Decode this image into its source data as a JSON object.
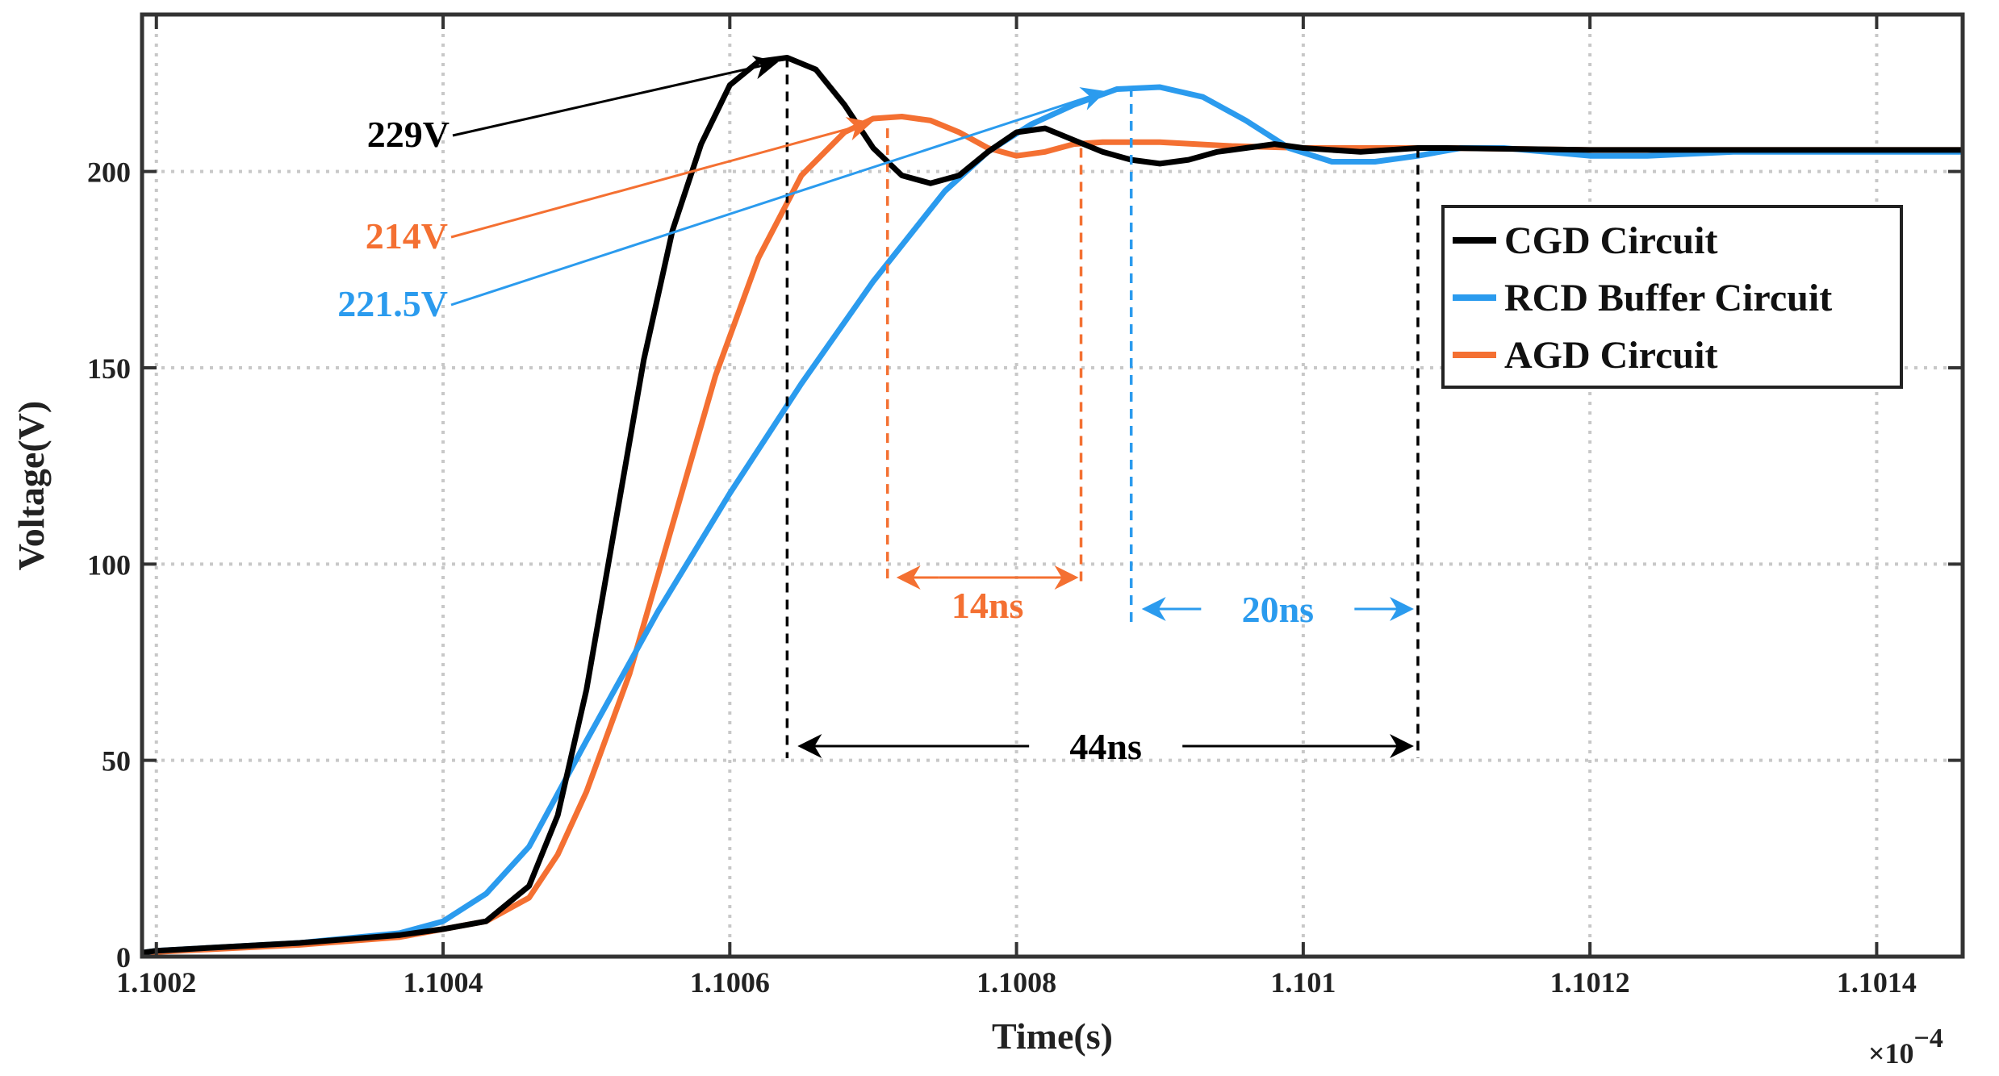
{
  "chart_data": {
    "type": "line",
    "xlabel": "Time(s)",
    "ylabel": "Voltage(V)",
    "x_multiplier": "×10",
    "x_multiplier_exp": "−4",
    "xlim": [
      1.10019,
      1.10146
    ],
    "ylim": [
      0,
      240
    ],
    "x_ticks": [
      1.1002,
      1.1004,
      1.1006,
      1.1008,
      1.101,
      1.1012,
      1.1014
    ],
    "x_tick_labels": [
      "1.1002",
      "1.1004",
      "1.1006",
      "1.1008",
      "1.101",
      "1.1012",
      "1.1014"
    ],
    "y_ticks": [
      0,
      50,
      100,
      150,
      200
    ],
    "y_tick_labels": [
      "0",
      "50",
      "100",
      "150",
      "200"
    ],
    "grid": true,
    "legend_position": "top-right",
    "series": [
      {
        "name": "CGD Circuit",
        "color": "#000000",
        "points": [
          [
            1.10019,
            1
          ],
          [
            1.1002,
            1.5
          ],
          [
            1.1003,
            3.5
          ],
          [
            1.10037,
            5.5
          ],
          [
            1.1004,
            7
          ],
          [
            1.10043,
            9
          ],
          [
            1.10046,
            18
          ],
          [
            1.10048,
            36
          ],
          [
            1.1005,
            68
          ],
          [
            1.10052,
            110
          ],
          [
            1.10054,
            152
          ],
          [
            1.10056,
            185
          ],
          [
            1.10058,
            207
          ],
          [
            1.1006,
            222
          ],
          [
            1.10062,
            228
          ],
          [
            1.10064,
            229
          ],
          [
            1.10066,
            226
          ],
          [
            1.10068,
            217
          ],
          [
            1.1007,
            206
          ],
          [
            1.10072,
            199
          ],
          [
            1.10074,
            197
          ],
          [
            1.10076,
            199
          ],
          [
            1.10078,
            205
          ],
          [
            1.1008,
            210
          ],
          [
            1.10082,
            211
          ],
          [
            1.10084,
            208
          ],
          [
            1.10086,
            205
          ],
          [
            1.10088,
            203
          ],
          [
            1.1009,
            202
          ],
          [
            1.10092,
            203
          ],
          [
            1.10094,
            205
          ],
          [
            1.10096,
            206
          ],
          [
            1.10098,
            207
          ],
          [
            1.101,
            206
          ],
          [
            1.10104,
            205
          ],
          [
            1.10108,
            206
          ],
          [
            1.1011,
            206
          ],
          [
            1.1012,
            205.5
          ],
          [
            1.1013,
            205.5
          ],
          [
            1.10146,
            205.5
          ]
        ]
      },
      {
        "name": "RCD Buffer Circuit",
        "color": "#2b9bee",
        "points": [
          [
            1.10019,
            1
          ],
          [
            1.1002,
            1.5
          ],
          [
            1.1003,
            3.5
          ],
          [
            1.10037,
            6
          ],
          [
            1.1004,
            9
          ],
          [
            1.10043,
            16
          ],
          [
            1.10046,
            28
          ],
          [
            1.1005,
            55
          ],
          [
            1.10055,
            88
          ],
          [
            1.1006,
            118
          ],
          [
            1.10065,
            146
          ],
          [
            1.1007,
            172
          ],
          [
            1.10075,
            195
          ],
          [
            1.10078,
            205
          ],
          [
            1.10081,
            212
          ],
          [
            1.10084,
            217
          ],
          [
            1.10087,
            221
          ],
          [
            1.1009,
            221.5
          ],
          [
            1.10093,
            219
          ],
          [
            1.10096,
            213
          ],
          [
            1.10099,
            206
          ],
          [
            1.10102,
            202.5
          ],
          [
            1.10105,
            202.5
          ],
          [
            1.10108,
            204
          ],
          [
            1.10111,
            206
          ],
          [
            1.10114,
            206
          ],
          [
            1.10117,
            205
          ],
          [
            1.1012,
            204
          ],
          [
            1.10124,
            204
          ],
          [
            1.1013,
            205
          ],
          [
            1.10146,
            205
          ]
        ]
      },
      {
        "name": "AGD Circuit",
        "color": "#f47032",
        "points": [
          [
            1.10019,
            1
          ],
          [
            1.1002,
            1.2
          ],
          [
            1.1003,
            3
          ],
          [
            1.10037,
            5
          ],
          [
            1.1004,
            7
          ],
          [
            1.10043,
            9
          ],
          [
            1.10046,
            15
          ],
          [
            1.10048,
            26
          ],
          [
            1.1005,
            42
          ],
          [
            1.10053,
            72
          ],
          [
            1.10056,
            110
          ],
          [
            1.10059,
            148
          ],
          [
            1.10062,
            178
          ],
          [
            1.10065,
            199
          ],
          [
            1.10068,
            210
          ],
          [
            1.1007,
            213.5
          ],
          [
            1.10072,
            214
          ],
          [
            1.10074,
            213
          ],
          [
            1.10076,
            210
          ],
          [
            1.10078,
            206
          ],
          [
            1.1008,
            204
          ],
          [
            1.10082,
            205
          ],
          [
            1.10084,
            207
          ],
          [
            1.10086,
            207.5
          ],
          [
            1.10088,
            207.5
          ],
          [
            1.1009,
            207.5
          ],
          [
            1.10095,
            206.5
          ],
          [
            1.101,
            206
          ],
          [
            1.1011,
            206
          ],
          [
            1.1012,
            205.5
          ],
          [
            1.10146,
            205.5
          ]
        ]
      }
    ],
    "annotations": {
      "peak_cgd": {
        "label": "229V",
        "color": "#000000",
        "x": 1.10064,
        "y": 229
      },
      "peak_agd": {
        "label": "214V",
        "color": "#f47032",
        "x": 1.10071,
        "y": 214
      },
      "peak_rcd": {
        "label": "221.5V",
        "color": "#2b9bee",
        "x": 1.10088,
        "y": 221.5
      },
      "interval_agd": {
        "label": "14ns",
        "color": "#f47032",
        "x_start": 1.10071,
        "x_end": 1.100845
      },
      "interval_rcd": {
        "label": "20ns",
        "color": "#2b9bee",
        "x_start": 1.10088,
        "x_end": 1.10108
      },
      "interval_cgd": {
        "label": "44ns",
        "color": "#000000",
        "x_start": 1.10064,
        "x_end": 1.10108
      }
    }
  }
}
